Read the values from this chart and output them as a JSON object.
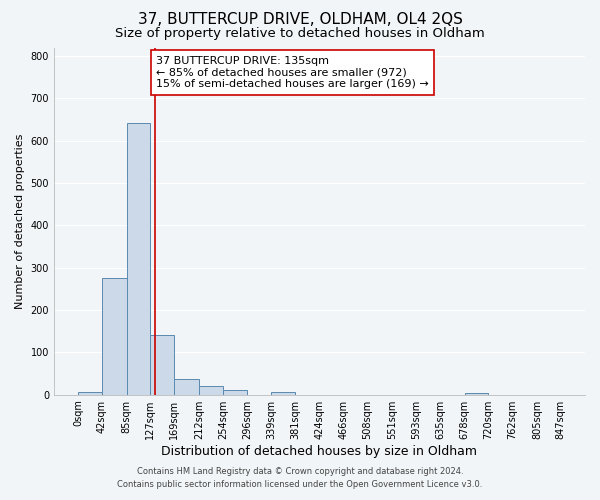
{
  "title": "37, BUTTERCUP DRIVE, OLDHAM, OL4 2QS",
  "subtitle": "Size of property relative to detached houses in Oldham",
  "xlabel": "Distribution of detached houses by size in Oldham",
  "ylabel": "Number of detached properties",
  "bin_edges": [
    0,
    42,
    85,
    127,
    169,
    212,
    254,
    296,
    339,
    381,
    424,
    466,
    508,
    551,
    593,
    635,
    678,
    720,
    762,
    805,
    847
  ],
  "bin_counts": [
    7,
    275,
    641,
    140,
    37,
    20,
    11,
    0,
    7,
    0,
    0,
    0,
    0,
    0,
    0,
    0,
    5,
    0,
    0,
    0
  ],
  "bar_color": "#ccd9e8",
  "bar_edge_color": "#5a8ab0",
  "vertical_line_x": 135,
  "vline_color": "#cc0000",
  "annotation_text": "37 BUTTERCUP DRIVE: 135sqm\n← 85% of detached houses are smaller (972)\n15% of semi-detached houses are larger (169) →",
  "annotation_box_facecolor": "white",
  "annotation_box_edgecolor": "#cc0000",
  "ylim": [
    0,
    820
  ],
  "yticks": [
    0,
    100,
    200,
    300,
    400,
    500,
    600,
    700,
    800
  ],
  "footer1": "Contains HM Land Registry data © Crown copyright and database right 2024.",
  "footer2": "Contains public sector information licensed under the Open Government Licence v3.0.",
  "bg_color": "#f2f5f8",
  "grid_color": "#ffffff",
  "title_fontsize": 11,
  "subtitle_fontsize": 9.5,
  "xlabel_fontsize": 9,
  "ylabel_fontsize": 8,
  "tick_fontsize": 7,
  "annotation_fontsize": 8,
  "footer_fontsize": 6
}
